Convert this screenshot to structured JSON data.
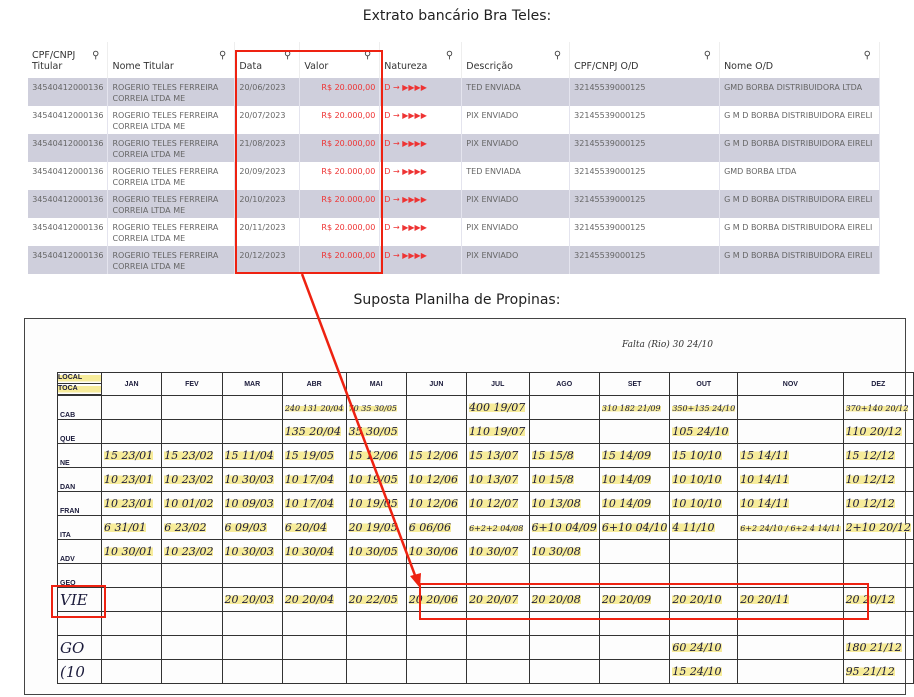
{
  "bank": {
    "title": "Extrato bancário Bra Teles:",
    "columns": [
      "CPF/CNPJ Titular",
      "Nome Titular",
      "Data",
      "Valor",
      "Natureza",
      "Descrição",
      "CPF/CNPJ O/D",
      "Nome O/D"
    ],
    "rows": [
      [
        "34540412000136",
        "ROGERIO TELES FERREIRA CORREIA LTDA ME",
        "20/06/2023",
        "R$ 20.000,00",
        "D → ▶▶▶▶",
        "TED ENVIADA",
        "32145539000125",
        "GMD BORBA DISTRIBUIDORA LTDA"
      ],
      [
        "34540412000136",
        "ROGERIO TELES FERREIRA CORREIA LTDA ME",
        "20/07/2023",
        "R$ 20.000,00",
        "D → ▶▶▶▶",
        "PIX ENVIADO",
        "32145539000125",
        "G M D BORBA DISTRIBUIDORA EIRELI"
      ],
      [
        "34540412000136",
        "ROGERIO TELES FERREIRA CORREIA LTDA ME",
        "21/08/2023",
        "R$ 20.000,00",
        "D → ▶▶▶▶",
        "PIX ENVIADO",
        "32145539000125",
        "G M D BORBA DISTRIBUIDORA EIRELI"
      ],
      [
        "34540412000136",
        "ROGERIO TELES FERREIRA CORREIA LTDA ME",
        "20/09/2023",
        "R$ 20.000,00",
        "D → ▶▶▶▶",
        "TED ENVIADA",
        "32145539000125",
        "GMD BORBA LTDA"
      ],
      [
        "34540412000136",
        "ROGERIO TELES FERREIRA CORREIA LTDA ME",
        "20/10/2023",
        "R$ 20.000,00",
        "D → ▶▶▶▶",
        "PIX ENVIADO",
        "32145539000125",
        "G M D BORBA DISTRIBUIDORA EIRELI"
      ],
      [
        "34540412000136",
        "ROGERIO TELES FERREIRA CORREIA LTDA ME",
        "20/11/2023",
        "R$ 20.000,00",
        "D → ▶▶▶▶",
        "PIX ENVIADO",
        "32145539000125",
        "G M D BORBA DISTRIBUIDORA EIRELI"
      ],
      [
        "34540412000136",
        "ROGERIO TELES FERREIRA CORREIA LTDA ME",
        "20/12/2023",
        "R$ 20.000,00",
        "D → ▶▶▶▶",
        "PIX ENVIADO",
        "32145539000125",
        "G M D BORBA DISTRIBUIDORA EIRELI"
      ]
    ],
    "accent": "#e22222"
  },
  "sheet": {
    "title": "Suposta Planilha de Propinas:",
    "corner": [
      "LOCAL",
      "TOCA"
    ],
    "months": [
      "JAN",
      "FEV",
      "MAR",
      "ABR",
      "MAI",
      "JUN",
      "JUL",
      "AGO",
      "SET",
      "OUT",
      "NOV",
      "DEZ"
    ],
    "note": "Falta (Rio) 30 24/10",
    "rows": [
      {
        "label": "CAB",
        "cells": [
          "",
          "",
          "",
          "240 131 20/04",
          "70 35 30/05",
          "",
          "400 19/07",
          "",
          "310 182 21/09",
          "350+135 24/10",
          "",
          "370+140 20/12"
        ]
      },
      {
        "label": "QUE",
        "cells": [
          "",
          "",
          "",
          "135 20/04",
          "35 30/05",
          "",
          "110 19/07",
          "",
          "",
          "105 24/10",
          "",
          "110 20/12"
        ]
      },
      {
        "label": "NE",
        "cells": [
          "15 23/01",
          "15 23/02",
          "15 11/04",
          "15 19/05",
          "15 12/06",
          "15 12/06",
          "15 13/07",
          "15 15/8",
          "15 14/09",
          "15 10/10",
          "15 14/11",
          "15 12/12"
        ]
      },
      {
        "label": "DAN",
        "cells": [
          "10 23/01",
          "10 23/02",
          "10 30/03",
          "10 17/04",
          "10 19/05",
          "10 12/06",
          "10 13/07",
          "10 15/8",
          "10 14/09",
          "10 10/10",
          "10 14/11",
          "10 12/12"
        ]
      },
      {
        "label": "FRAN",
        "cells": [
          "10 23/01",
          "10 01/02",
          "10 09/03",
          "10 17/04",
          "10 19/05",
          "10 12/06",
          "10 12/07",
          "10 13/08",
          "10 14/09",
          "10 10/10",
          "10 14/11",
          "10 12/12"
        ]
      },
      {
        "label": "ITA",
        "cells": [
          "6 31/01",
          "6 23/02",
          "6 09/03",
          "6 20/04",
          "20 19/05",
          "6 06/06",
          "6+2+2 04/08",
          "6+10 04/09",
          "6+10 04/10",
          "4 11/10",
          "6+2 24/10 / 6+2 4 14/11",
          "2+10 20/12"
        ]
      },
      {
        "label": "ADV",
        "cells": [
          "10 30/01",
          "10 23/02",
          "10 30/03",
          "10 30/04",
          "10 30/05",
          "10 30/06",
          "10 30/07",
          "10 30/08",
          "",
          "",
          "",
          ""
        ]
      },
      {
        "label": "GEO",
        "cells": [
          "",
          "",
          "",
          "",
          "",
          "",
          "",
          "",
          "",
          "",
          "",
          ""
        ]
      },
      {
        "label": "VIE",
        "hand": true,
        "cells": [
          "",
          "",
          "20 20/03",
          "20 20/04",
          "20 22/05",
          "20 20/06",
          "20 20/07",
          "20 20/08",
          "20 20/09",
          "20 20/10",
          "20 20/11",
          "20 20/12"
        ]
      },
      {
        "label": "",
        "cells": [
          "",
          "",
          "",
          "",
          "",
          "",
          "",
          "",
          "",
          "",
          "",
          ""
        ]
      },
      {
        "label": "GO",
        "hand": true,
        "cells": [
          "",
          "",
          "",
          "",
          "",
          "",
          "",
          "",
          "",
          "60 24/10",
          "",
          "180 21/12"
        ]
      },
      {
        "label": "(10",
        "hand": true,
        "cells": [
          "",
          "",
          "",
          "",
          "",
          "",
          "",
          "",
          "",
          "15 24/10",
          "",
          "95 21/12"
        ]
      }
    ],
    "highlight": "#f7ec9a"
  }
}
